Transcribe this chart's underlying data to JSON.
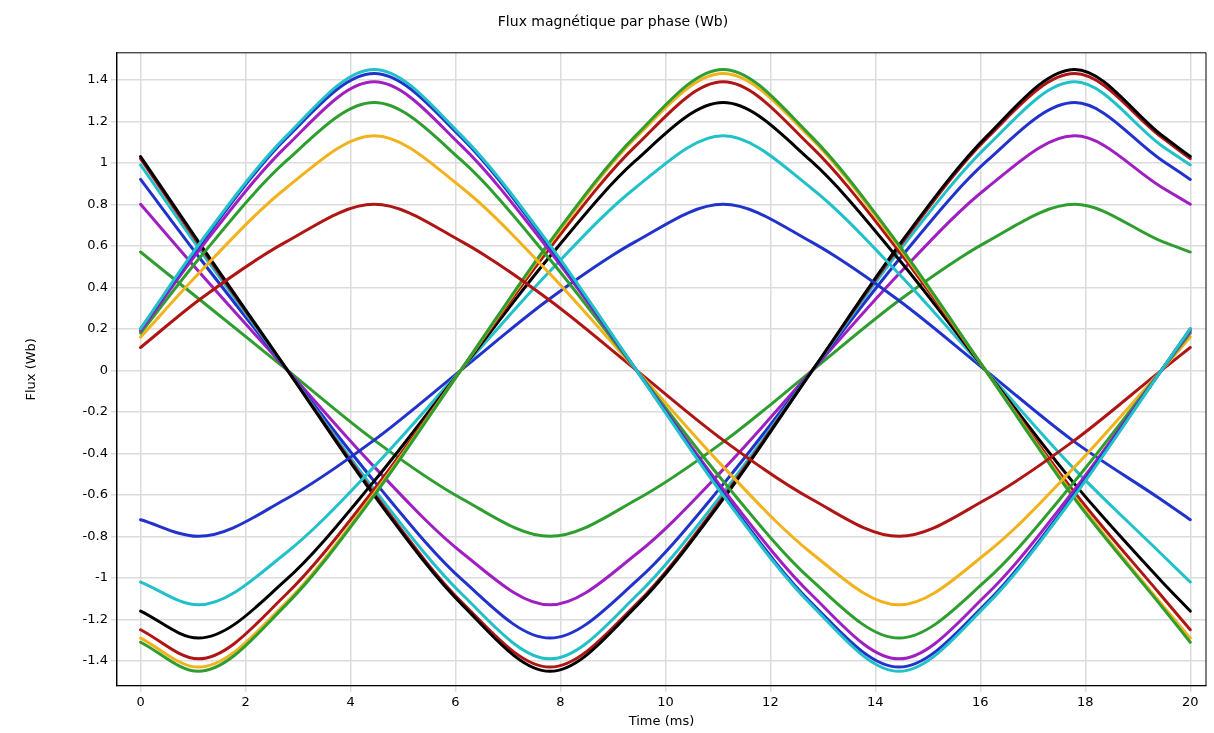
{
  "chart_data": {
    "type": "line",
    "title": "Flux magnétique par phase (Wb)",
    "xlabel": "Time (ms)",
    "ylabel": "Flux (Wb)",
    "xlim": [
      -0.45,
      20.3
    ],
    "xticks": [
      0,
      2,
      4,
      6,
      8,
      10,
      12,
      14,
      16,
      18,
      20
    ],
    "ylim": [
      -1.52,
      1.53
    ],
    "yticks": [
      -1.4,
      -1.2,
      -1,
      -0.8,
      -0.6,
      -0.4,
      -0.2,
      0,
      0.2,
      0.4,
      0.6,
      0.8,
      1,
      1.2,
      1.4
    ],
    "grid": true,
    "legend": false,
    "series": [
      {
        "color": "#22c1c9",
        "x": [
          0,
          1.12,
          2.78,
          4.45,
          6.12,
          7.78,
          9.45,
          11.12,
          12.78,
          14.45,
          16.12,
          17.78,
          19.45,
          20
        ],
        "values": [
          0.2,
          0.61,
          1.13,
          1.45,
          1.13,
          0.61,
          0,
          -0.61,
          -1.13,
          -1.45,
          -1.13,
          -0.61,
          0,
          0.2
        ]
      },
      {
        "color": "#2233cc",
        "x": [
          0,
          1.12,
          2.78,
          4.45,
          6.12,
          7.78,
          9.45,
          11.12,
          12.78,
          14.45,
          16.12,
          17.78,
          19.45,
          20
        ],
        "values": [
          0.2,
          0.6,
          1.12,
          1.43,
          1.12,
          0.6,
          0,
          -0.6,
          -1.12,
          -1.43,
          -1.12,
          -0.6,
          0,
          0.2
        ]
      },
      {
        "color": "#a01fc0",
        "x": [
          0,
          1.12,
          2.78,
          4.45,
          6.12,
          7.78,
          9.45,
          11.12,
          12.78,
          14.45,
          16.12,
          17.78,
          19.45,
          20
        ],
        "values": [
          0.19,
          0.58,
          1.08,
          1.39,
          1.08,
          0.58,
          0,
          -0.58,
          -1.08,
          -1.39,
          -1.08,
          -0.58,
          0,
          0.19
        ]
      },
      {
        "color": "#2e9e2e",
        "x": [
          0,
          1.12,
          2.78,
          4.45,
          6.12,
          7.78,
          9.45,
          11.12,
          12.78,
          14.45,
          16.12,
          17.78,
          19.45,
          20
        ],
        "values": [
          0.18,
          0.54,
          1.01,
          1.29,
          1.01,
          0.54,
          0,
          -0.54,
          -1.01,
          -1.29,
          -1.01,
          -0.54,
          0,
          0.18
        ]
      },
      {
        "color": "#f2b21e",
        "x": [
          0,
          1.12,
          2.78,
          4.45,
          6.12,
          7.78,
          9.45,
          11.12,
          12.78,
          14.45,
          16.12,
          17.78,
          19.45,
          20
        ],
        "values": [
          0.16,
          0.47,
          0.88,
          1.13,
          0.88,
          0.47,
          0,
          -0.47,
          -0.88,
          -1.13,
          -0.88,
          -0.47,
          0,
          0.16
        ]
      },
      {
        "color": "#b01515",
        "x": [
          0,
          1.12,
          2.78,
          4.45,
          6.12,
          7.78,
          9.45,
          11.12,
          12.78,
          14.45,
          16.12,
          17.78,
          19.45,
          20
        ],
        "values": [
          0.11,
          0.34,
          0.62,
          0.8,
          0.62,
          0.34,
          0,
          -0.34,
          -0.62,
          -0.8,
          -0.62,
          -0.34,
          0,
          0.11
        ]
      },
      {
        "color": "#2e9e2e",
        "x": [
          0,
          1.1,
          2.77,
          4.43,
          6.1,
          7.77,
          9.43,
          11.1,
          12.77,
          14.43,
          16.1,
          17.77,
          19.43,
          20
        ],
        "values": [
          -1.31,
          -1.45,
          -1.13,
          -0.61,
          0,
          0.61,
          1.13,
          1.45,
          1.13,
          0.61,
          0,
          -0.61,
          -1.13,
          -1.31
        ]
      },
      {
        "color": "#f2b21e",
        "x": [
          0,
          1.1,
          2.77,
          4.43,
          6.1,
          7.77,
          9.43,
          11.1,
          12.77,
          14.43,
          16.1,
          17.77,
          19.43,
          20
        ],
        "values": [
          -1.29,
          -1.43,
          -1.12,
          -0.6,
          0,
          0.6,
          1.12,
          1.43,
          1.12,
          0.6,
          0,
          -0.6,
          -1.12,
          -1.29
        ]
      },
      {
        "color": "#b01515",
        "x": [
          0,
          1.1,
          2.77,
          4.43,
          6.1,
          7.77,
          9.43,
          11.1,
          12.77,
          14.43,
          16.1,
          17.77,
          19.43,
          20
        ],
        "values": [
          -1.25,
          -1.39,
          -1.08,
          -0.58,
          0,
          0.58,
          1.08,
          1.39,
          1.08,
          0.58,
          0,
          -0.58,
          -1.08,
          -1.25
        ]
      },
      {
        "color": "#000000",
        "x": [
          0,
          1.1,
          2.77,
          4.43,
          6.1,
          7.77,
          9.43,
          11.1,
          12.77,
          14.43,
          16.1,
          17.77,
          19.43,
          20
        ],
        "values": [
          -1.16,
          -1.29,
          -1.01,
          -0.54,
          0,
          0.54,
          1.01,
          1.29,
          1.01,
          0.54,
          0,
          -0.54,
          -1.01,
          -1.16
        ]
      },
      {
        "color": "#22c1c9",
        "x": [
          0,
          1.1,
          2.77,
          4.43,
          6.1,
          7.77,
          9.43,
          11.1,
          12.77,
          14.43,
          16.1,
          17.77,
          19.43,
          20
        ],
        "values": [
          -1.02,
          -1.13,
          -0.88,
          -0.47,
          0,
          0.47,
          0.88,
          1.13,
          0.88,
          0.47,
          0,
          -0.47,
          -0.88,
          -1.02
        ]
      },
      {
        "color": "#2233cc",
        "x": [
          0,
          1.1,
          2.77,
          4.43,
          6.1,
          7.77,
          9.43,
          11.1,
          12.77,
          14.43,
          16.1,
          17.77,
          19.43,
          20
        ],
        "values": [
          -0.72,
          -0.8,
          -0.62,
          -0.34,
          0,
          0.34,
          0.62,
          0.8,
          0.62,
          0.34,
          0,
          -0.34,
          -0.62,
          -0.72
        ]
      },
      {
        "color": "#000000",
        "x": [
          0,
          1.13,
          2.8,
          4.47,
          6.13,
          7.8,
          9.47,
          11.13,
          12.8,
          14.47,
          16.13,
          17.8,
          19.47,
          20
        ],
        "values": [
          1.03,
          0.61,
          0,
          -0.61,
          -1.13,
          -1.45,
          -1.13,
          -0.61,
          0,
          0.61,
          1.13,
          1.45,
          1.13,
          1.03
        ]
      },
      {
        "color": "#b01515",
        "x": [
          0,
          1.13,
          2.8,
          4.47,
          6.13,
          7.8,
          9.47,
          11.13,
          12.8,
          14.47,
          16.13,
          17.8,
          19.47,
          20
        ],
        "values": [
          1.02,
          0.6,
          0,
          -0.6,
          -1.12,
          -1.43,
          -1.12,
          -0.6,
          0,
          0.6,
          1.12,
          1.43,
          1.12,
          1.02
        ]
      },
      {
        "color": "#22c1c9",
        "x": [
          0,
          1.13,
          2.8,
          4.47,
          6.13,
          7.8,
          9.47,
          11.13,
          12.8,
          14.47,
          16.13,
          17.8,
          19.47,
          20
        ],
        "values": [
          0.99,
          0.58,
          0,
          -0.58,
          -1.08,
          -1.39,
          -1.08,
          -0.58,
          0,
          0.58,
          1.08,
          1.39,
          1.08,
          0.99
        ]
      },
      {
        "color": "#2233cc",
        "x": [
          0,
          1.13,
          2.8,
          4.47,
          6.13,
          7.8,
          9.47,
          11.13,
          12.8,
          14.47,
          16.13,
          17.8,
          19.47,
          20
        ],
        "values": [
          0.92,
          0.54,
          0,
          -0.54,
          -1.01,
          -1.29,
          -1.01,
          -0.54,
          0,
          0.54,
          1.01,
          1.29,
          1.01,
          0.92
        ]
      },
      {
        "color": "#a01fc0",
        "x": [
          0,
          1.13,
          2.8,
          4.47,
          6.13,
          7.8,
          9.47,
          11.13,
          12.8,
          14.47,
          16.13,
          17.8,
          19.47,
          20
        ],
        "values": [
          0.8,
          0.47,
          0,
          -0.47,
          -0.88,
          -1.13,
          -0.88,
          -0.47,
          0,
          0.47,
          0.88,
          1.13,
          0.88,
          0.8
        ]
      },
      {
        "color": "#2e9e2e",
        "x": [
          0,
          1.13,
          2.8,
          4.47,
          6.13,
          7.8,
          9.47,
          11.13,
          12.8,
          14.47,
          16.13,
          17.8,
          19.47,
          20
        ],
        "values": [
          0.57,
          0.34,
          0,
          -0.34,
          -0.62,
          -0.8,
          -0.62,
          -0.34,
          0,
          0.34,
          0.62,
          0.8,
          0.62,
          0.57
        ]
      }
    ]
  }
}
